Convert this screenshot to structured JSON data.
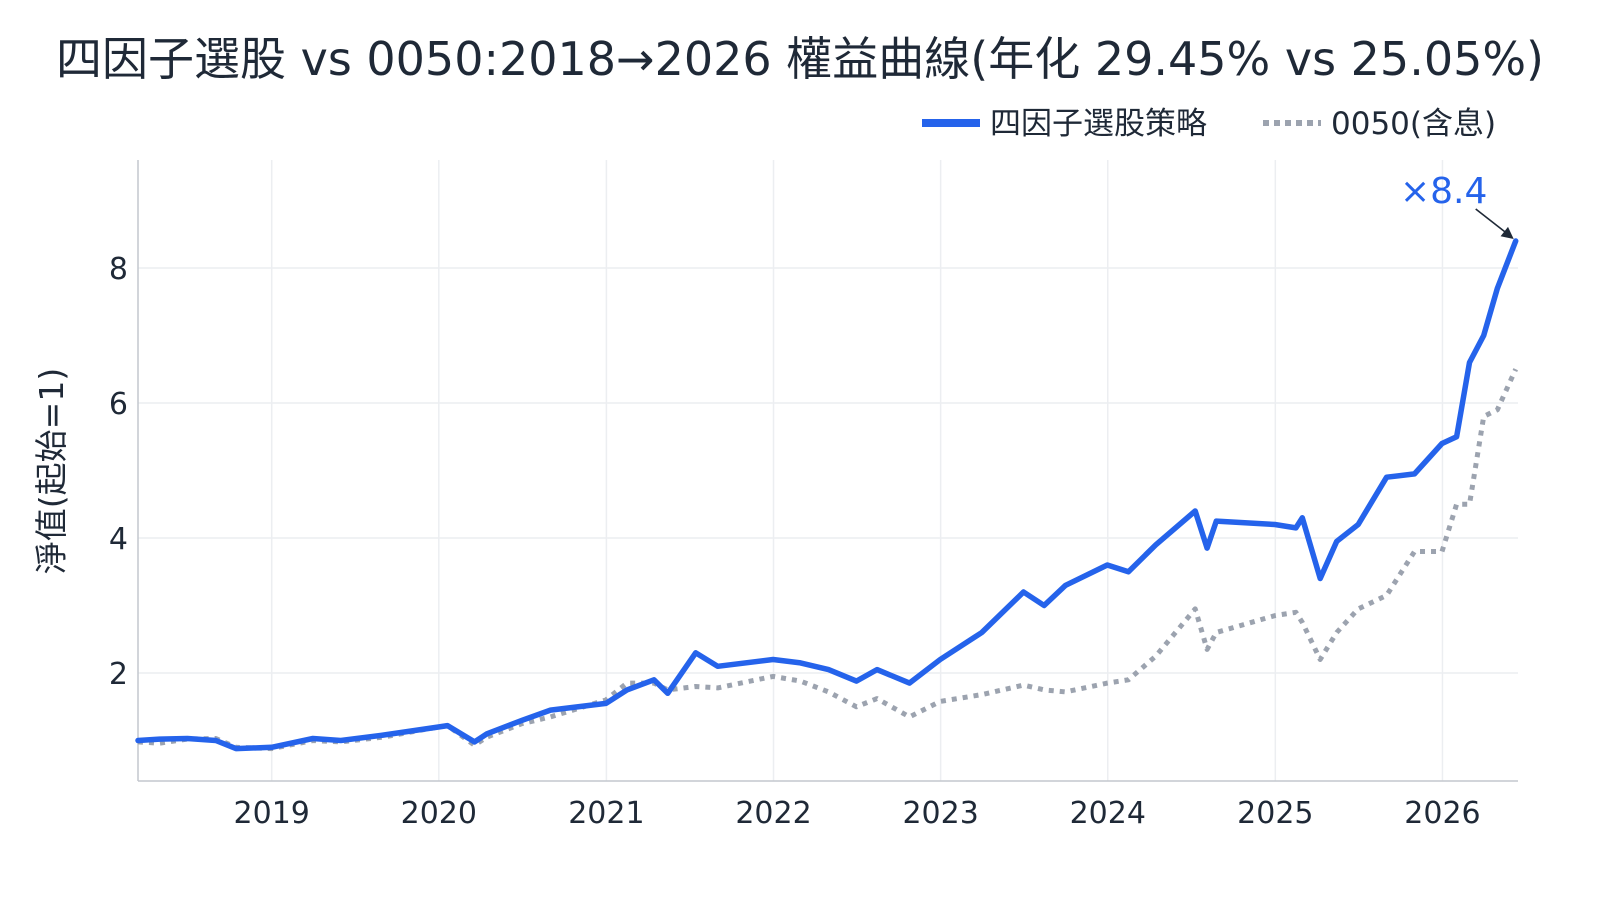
{
  "chart_data": {
    "type": "line",
    "title": "四因子選股 vs 0050:2018→2026 權益曲線(年化 29.45% vs 25.05%)",
    "xlabel": "",
    "ylabel": "淨值(起始=1)",
    "xlim": [
      "2018-03-15",
      "2026-06-15"
    ],
    "ylim": [
      0.4,
      9.6
    ],
    "x_ticks": [
      "2019",
      "2020",
      "2021",
      "2022",
      "2023",
      "2024",
      "2025",
      "2026"
    ],
    "y_ticks": [
      "2",
      "4",
      "6",
      "8"
    ],
    "grid": true,
    "legend_position": "top-right",
    "annotation": {
      "text": "×8.4",
      "x": "2026-06-10",
      "y": 8.4,
      "color": "#2563eb"
    },
    "series": [
      {
        "name": "四因子選股策略",
        "color": "#2563eb",
        "style": "solid",
        "points": [
          [
            "2018-03-15",
            1.0
          ],
          [
            "2018-05-01",
            1.02
          ],
          [
            "2018-07-01",
            1.03
          ],
          [
            "2018-09-01",
            1.0
          ],
          [
            "2018-10-15",
            0.88
          ],
          [
            "2019-01-01",
            0.9
          ],
          [
            "2019-04-01",
            1.03
          ],
          [
            "2019-06-01",
            1.0
          ],
          [
            "2019-09-01",
            1.08
          ],
          [
            "2019-12-31",
            1.2
          ],
          [
            "2020-01-20",
            1.22
          ],
          [
            "2020-03-19",
            0.98
          ],
          [
            "2020-04-15",
            1.1
          ],
          [
            "2020-07-01",
            1.3
          ],
          [
            "2020-09-01",
            1.45
          ],
          [
            "2020-12-31",
            1.55
          ],
          [
            "2021-02-15",
            1.75
          ],
          [
            "2021-04-15",
            1.9
          ],
          [
            "2021-05-15",
            1.7
          ],
          [
            "2021-07-15",
            2.3
          ],
          [
            "2021-09-01",
            2.1
          ],
          [
            "2021-12-31",
            2.2
          ],
          [
            "2022-03-01",
            2.15
          ],
          [
            "2022-05-01",
            2.05
          ],
          [
            "2022-07-01",
            1.88
          ],
          [
            "2022-08-15",
            2.05
          ],
          [
            "2022-10-25",
            1.85
          ],
          [
            "2022-12-31",
            2.2
          ],
          [
            "2023-04-01",
            2.6
          ],
          [
            "2023-07-01",
            3.2
          ],
          [
            "2023-08-15",
            3.0
          ],
          [
            "2023-10-01",
            3.3
          ],
          [
            "2023-12-31",
            3.6
          ],
          [
            "2024-02-15",
            3.5
          ],
          [
            "2024-04-15",
            3.9
          ],
          [
            "2024-07-10",
            4.4
          ],
          [
            "2024-08-05",
            3.85
          ],
          [
            "2024-08-25",
            4.25
          ],
          [
            "2024-12-31",
            4.2
          ],
          [
            "2025-02-15",
            4.15
          ],
          [
            "2025-03-01",
            4.3
          ],
          [
            "2025-04-09",
            3.4
          ],
          [
            "2025-05-15",
            3.95
          ],
          [
            "2025-07-01",
            4.2
          ],
          [
            "2025-09-01",
            4.9
          ],
          [
            "2025-11-01",
            4.95
          ],
          [
            "2025-12-31",
            5.4
          ],
          [
            "2026-02-01",
            5.5
          ],
          [
            "2026-03-01",
            6.6
          ],
          [
            "2026-04-01",
            7.0
          ],
          [
            "2026-05-01",
            7.7
          ],
          [
            "2026-06-10",
            8.4
          ]
        ]
      },
      {
        "name": "0050(含息)",
        "color": "#9ca3af",
        "style": "dotted",
        "points": [
          [
            "2018-03-15",
            0.98
          ],
          [
            "2018-05-01",
            0.96
          ],
          [
            "2018-07-01",
            1.02
          ],
          [
            "2018-09-01",
            1.03
          ],
          [
            "2018-10-15",
            0.9
          ],
          [
            "2019-01-01",
            0.88
          ],
          [
            "2019-04-01",
            1.0
          ],
          [
            "2019-06-01",
            0.98
          ],
          [
            "2019-09-01",
            1.05
          ],
          [
            "2019-12-31",
            1.2
          ],
          [
            "2020-01-20",
            1.22
          ],
          [
            "2020-03-19",
            0.93
          ],
          [
            "2020-04-15",
            1.05
          ],
          [
            "2020-07-01",
            1.25
          ],
          [
            "2020-09-01",
            1.35
          ],
          [
            "2020-12-31",
            1.6
          ],
          [
            "2021-02-15",
            1.85
          ],
          [
            "2021-04-15",
            1.85
          ],
          [
            "2021-05-15",
            1.75
          ],
          [
            "2021-07-15",
            1.8
          ],
          [
            "2021-09-01",
            1.78
          ],
          [
            "2021-12-31",
            1.95
          ],
          [
            "2022-03-01",
            1.88
          ],
          [
            "2022-05-01",
            1.72
          ],
          [
            "2022-07-01",
            1.5
          ],
          [
            "2022-08-15",
            1.62
          ],
          [
            "2022-10-25",
            1.35
          ],
          [
            "2022-12-31",
            1.58
          ],
          [
            "2023-04-01",
            1.68
          ],
          [
            "2023-07-01",
            1.82
          ],
          [
            "2023-08-15",
            1.75
          ],
          [
            "2023-10-01",
            1.72
          ],
          [
            "2023-12-31",
            1.85
          ],
          [
            "2024-02-15",
            1.9
          ],
          [
            "2024-04-15",
            2.25
          ],
          [
            "2024-07-10",
            2.95
          ],
          [
            "2024-08-05",
            2.35
          ],
          [
            "2024-08-25",
            2.6
          ],
          [
            "2024-12-31",
            2.85
          ],
          [
            "2025-02-15",
            2.9
          ],
          [
            "2025-03-01",
            2.75
          ],
          [
            "2025-04-09",
            2.2
          ],
          [
            "2025-05-15",
            2.6
          ],
          [
            "2025-07-01",
            2.95
          ],
          [
            "2025-09-01",
            3.15
          ],
          [
            "2025-11-01",
            3.8
          ],
          [
            "2025-12-31",
            3.8
          ],
          [
            "2026-02-01",
            4.5
          ],
          [
            "2026-03-01",
            4.5
          ],
          [
            "2026-04-01",
            5.8
          ],
          [
            "2026-05-01",
            5.9
          ],
          [
            "2026-06-10",
            6.5
          ]
        ]
      }
    ]
  }
}
